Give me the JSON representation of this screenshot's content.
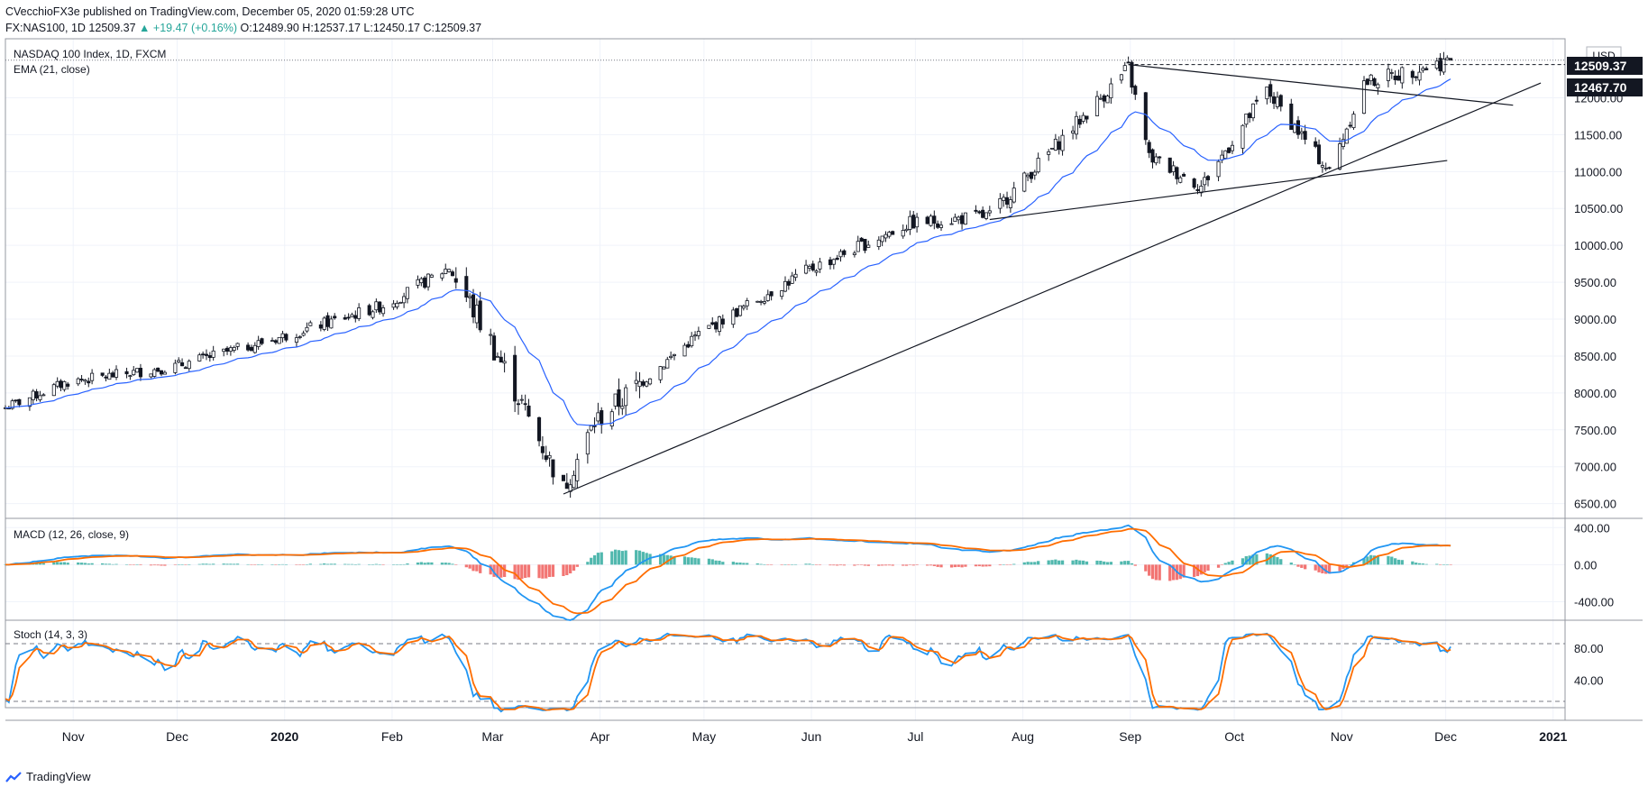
{
  "header": {
    "publisher_line": "CVecchioFX3e published on TradingView.com, December 05, 2020 01:59:28 UTC",
    "symbol_prefix": "FX:NAS100, 1D",
    "price": "12509.37",
    "change": "▲ +19.47 (+0.16%)",
    "ohlc": "O:12489.90  H:12537.17  L:12450.17  C:12509.37"
  },
  "main_panel": {
    "title": "NASDAQ 100 Index, 1D, FXCM",
    "indicator": "EMA (21, close)",
    "currency": "USD",
    "last_price_label": "12509.37",
    "ema_label": "12467.70",
    "y_ticks": [
      "12000.00",
      "11500.00",
      "11000.00",
      "10500.00",
      "10000.00",
      "9500.00",
      "9000.00",
      "8500.00",
      "8000.00",
      "7500.00",
      "7000.00",
      "6500.00"
    ]
  },
  "macd_panel": {
    "title": "MACD (12, 26, close, 9)",
    "y_ticks": [
      "400.00",
      "0.00",
      "-400.00"
    ]
  },
  "stoch_panel": {
    "title": "Stoch (14, 3, 3)",
    "y_ticks": [
      "80.00",
      "40.00"
    ]
  },
  "x_axis": {
    "labels": [
      "Nov",
      "Dec",
      "2020",
      "Feb",
      "Mar",
      "Apr",
      "May",
      "Jun",
      "Jul",
      "Aug",
      "Sep",
      "Oct",
      "Nov",
      "Dec",
      "2021"
    ]
  },
  "brand": "TradingView",
  "colors": {
    "up": "#26a69a",
    "ema": "#2962ff",
    "macd": "#2196f3",
    "signal": "#ff6d00",
    "hist_pos": "#26a69a",
    "hist_neg": "#ef5350"
  },
  "chart_data": {
    "type": "candlestick",
    "title": "NASDAQ 100 Index, 1D, FXCM",
    "y_range": [
      6300,
      12800
    ],
    "price_path": [
      {
        "date": "2019-10-14",
        "close": 7800
      },
      {
        "date": "2019-11-01",
        "close": 8150
      },
      {
        "date": "2019-12-01",
        "close": 8350
      },
      {
        "date": "2020-01-01",
        "close": 8750
      },
      {
        "date": "2020-02-01",
        "close": 9200
      },
      {
        "date": "2020-02-19",
        "close": 9700
      },
      {
        "date": "2020-03-01",
        "close": 8800
      },
      {
        "date": "2020-03-23",
        "close": 6700
      },
      {
        "date": "2020-04-01",
        "close": 7600
      },
      {
        "date": "2020-05-01",
        "close": 8800
      },
      {
        "date": "2020-06-01",
        "close": 9650
      },
      {
        "date": "2020-07-01",
        "close": 10300
      },
      {
        "date": "2020-07-24",
        "close": 10400
      },
      {
        "date": "2020-08-01",
        "close": 10800
      },
      {
        "date": "2020-09-02",
        "close": 12400
      },
      {
        "date": "2020-09-08",
        "close": 11200
      },
      {
        "date": "2020-09-23",
        "close": 10800
      },
      {
        "date": "2020-10-12",
        "close": 12100
      },
      {
        "date": "2020-10-30",
        "close": 11000
      },
      {
        "date": "2020-11-09",
        "close": 12200
      },
      {
        "date": "2020-12-04",
        "close": 12509.37
      }
    ],
    "trendlines": [
      {
        "from": {
          "date": "2020-03-23",
          "price": 6630
        },
        "to": {
          "date": "2020-12-30",
          "price": 12200
        }
      },
      {
        "from": {
          "date": "2020-09-02",
          "price": 12450
        },
        "to": {
          "date": "2020-12-22",
          "price": 11900
        }
      },
      {
        "from": {
          "date": "2020-07-24",
          "price": 10350
        },
        "to": {
          "date": "2020-12-03",
          "price": 11150
        }
      }
    ],
    "horizontal_line": 12450,
    "last_close": 12509.37,
    "ema_last": 12467.7,
    "macd_range": [
      -600,
      500
    ],
    "stoch_levels": [
      80,
      20
    ]
  }
}
